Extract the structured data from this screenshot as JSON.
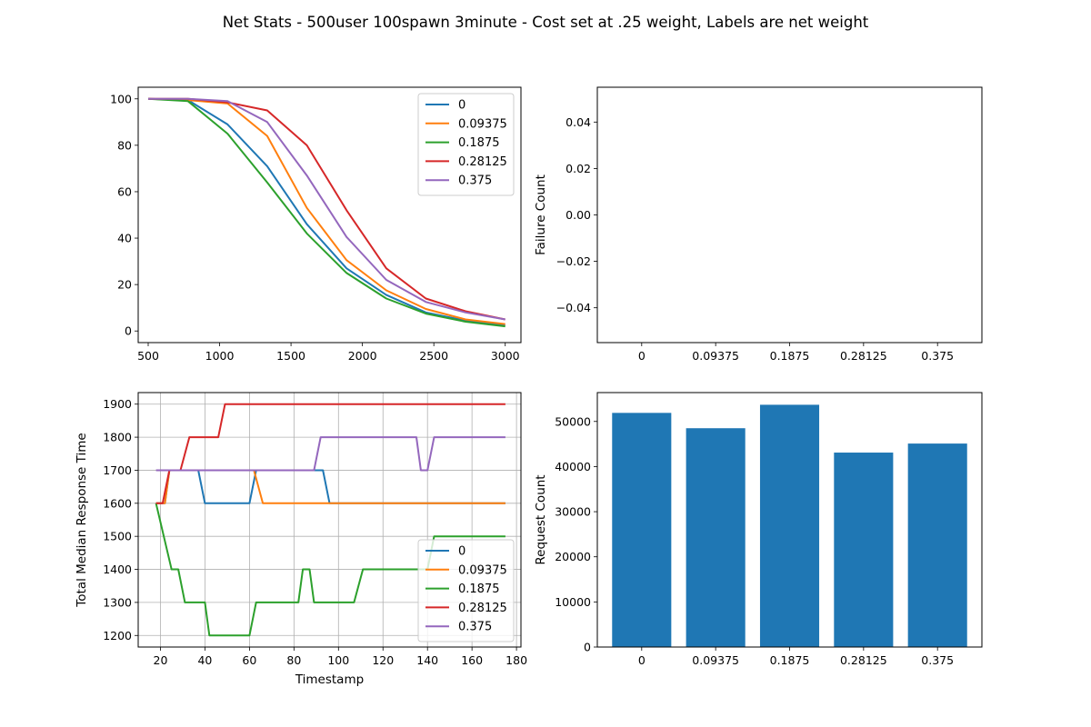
{
  "figure": {
    "suptitle": "Net Stats - 500user 100spawn 3minute - Cost set at .25 weight, Labels are net weight"
  },
  "colors": {
    "0": "#1f77b4",
    "0.09375": "#ff7f0e",
    "0.1875": "#2ca02c",
    "0.28125": "#d62728",
    "0.375": "#9467bd",
    "bar": "#1f77b4",
    "grid": "#b0b0b0"
  },
  "chart_data": [
    {
      "type": "line",
      "title": "",
      "xlabel": "",
      "ylabel": "",
      "xlim": [
        430,
        3110
      ],
      "ylim": [
        -5,
        105
      ],
      "xticks": [
        500,
        1000,
        1500,
        2000,
        2500,
        3000
      ],
      "yticks": [
        0,
        20,
        40,
        60,
        80,
        100
      ],
      "grid": false,
      "legend": "upper right",
      "x": [
        500,
        778,
        1056,
        1333,
        1611,
        1889,
        2167,
        2444,
        2722,
        3000
      ],
      "series": [
        {
          "name": "0",
          "values": [
            100,
            99.5,
            89,
            71,
            46,
            27,
            15.5,
            8,
            4.5,
            2.5
          ]
        },
        {
          "name": "0.09375",
          "values": [
            100,
            99.5,
            98,
            84,
            53,
            30.5,
            17.5,
            9.5,
            5,
            3
          ]
        },
        {
          "name": "0.1875",
          "values": [
            100,
            99,
            85,
            64,
            42,
            25,
            14,
            7.5,
            4,
            2
          ]
        },
        {
          "name": "0.28125",
          "values": [
            100,
            100,
            98.5,
            95,
            80,
            52,
            27,
            14,
            8.5,
            5
          ]
        },
        {
          "name": "0.375",
          "values": [
            100,
            100,
            99,
            90,
            67,
            40.5,
            22,
            12.5,
            8,
            5
          ]
        }
      ]
    },
    {
      "type": "bar",
      "title": "",
      "xlabel": "",
      "ylabel": "Failure Count",
      "categories": [
        "0",
        "0.09375",
        "0.1875",
        "0.28125",
        "0.375"
      ],
      "values": [
        0,
        0,
        0,
        0,
        0
      ],
      "ylim": [
        -0.055,
        0.055
      ],
      "yticks": [
        -0.04,
        -0.02,
        0.0,
        0.02,
        0.04
      ],
      "ytick_labels": [
        "−0.04",
        "−0.02",
        "0.00",
        "0.02",
        "0.04"
      ],
      "grid": false
    },
    {
      "type": "line",
      "title": "",
      "xlabel": "Timestamp",
      "ylabel": "Total Median Response Time",
      "xlim": [
        10,
        182
      ],
      "ylim": [
        1165,
        1935
      ],
      "xticks": [
        20,
        40,
        60,
        80,
        100,
        120,
        140,
        160,
        180
      ],
      "yticks": [
        1200,
        1300,
        1400,
        1500,
        1600,
        1700,
        1800,
        1900
      ],
      "grid": true,
      "legend": "lower right",
      "series": [
        {
          "name": "0",
          "points": [
            [
              18,
              1600
            ],
            [
              22,
              1600
            ],
            [
              24,
              1700
            ],
            [
              37,
              1700
            ],
            [
              40,
              1600
            ],
            [
              60,
              1600
            ],
            [
              63,
              1700
            ],
            [
              93,
              1700
            ],
            [
              96,
              1600
            ],
            [
              175,
              1600
            ]
          ]
        },
        {
          "name": "0.09375",
          "points": [
            [
              18,
              1600
            ],
            [
              22,
              1600
            ],
            [
              24,
              1700
            ],
            [
              62,
              1700
            ],
            [
              66,
              1600
            ],
            [
              175,
              1600
            ]
          ]
        },
        {
          "name": "0.1875",
          "points": [
            [
              18,
              1600
            ],
            [
              25,
              1400
            ],
            [
              28,
              1400
            ],
            [
              31,
              1300
            ],
            [
              40,
              1300
            ],
            [
              42,
              1200
            ],
            [
              60,
              1200
            ],
            [
              63,
              1300
            ],
            [
              82,
              1300
            ],
            [
              84,
              1400
            ],
            [
              87,
              1400
            ],
            [
              89,
              1300
            ],
            [
              107,
              1300
            ],
            [
              111,
              1400
            ],
            [
              140,
              1400
            ],
            [
              143,
              1500
            ],
            [
              175,
              1500
            ]
          ]
        },
        {
          "name": "0.28125",
          "points": [
            [
              18,
              1600
            ],
            [
              21,
              1600
            ],
            [
              24,
              1700
            ],
            [
              29,
              1700
            ],
            [
              33,
              1800
            ],
            [
              46,
              1800
            ],
            [
              49,
              1900
            ],
            [
              175,
              1900
            ]
          ]
        },
        {
          "name": "0.375",
          "points": [
            [
              18,
              1700
            ],
            [
              89,
              1700
            ],
            [
              92,
              1800
            ],
            [
              135,
              1800
            ],
            [
              137,
              1700
            ],
            [
              140,
              1700
            ],
            [
              143,
              1800
            ],
            [
              175,
              1800
            ]
          ]
        }
      ]
    },
    {
      "type": "bar",
      "title": "",
      "xlabel": "",
      "ylabel": "Request Count",
      "categories": [
        "0",
        "0.09375",
        "0.1875",
        "0.28125",
        "0.375"
      ],
      "values": [
        51900,
        48500,
        53700,
        43100,
        45100
      ],
      "ylim": [
        0,
        56400
      ],
      "yticks": [
        0,
        10000,
        20000,
        30000,
        40000,
        50000
      ],
      "grid": false
    }
  ]
}
